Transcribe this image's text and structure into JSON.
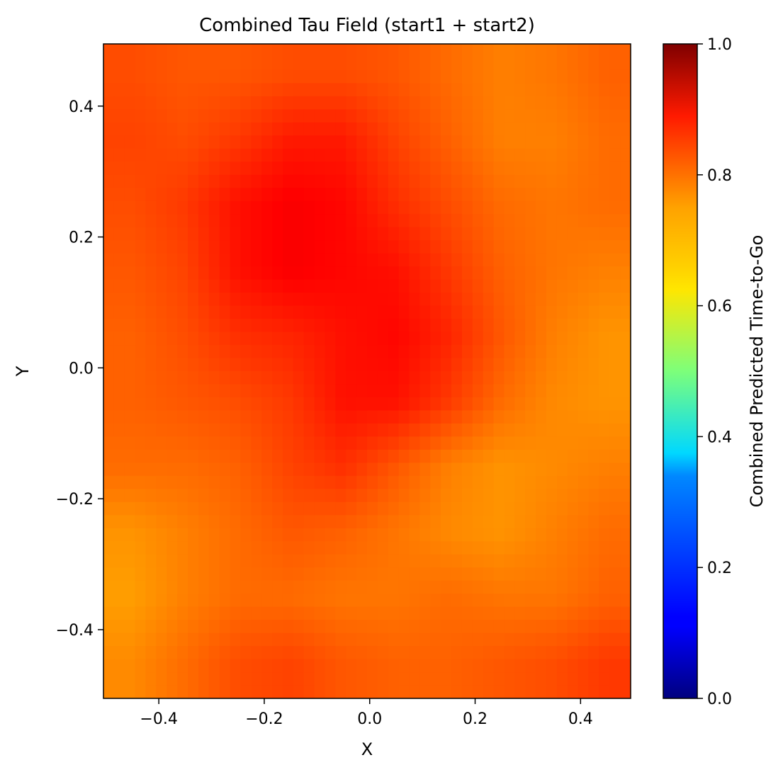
{
  "chart_data": {
    "type": "heatmap",
    "title": "Combined Tau Field (start1 + start2)",
    "xlabel": "X",
    "ylabel": "Y",
    "colorbar_label": "Combined Predicted Time-to-Go",
    "colormap": "jet",
    "xlim": [
      -0.505,
      0.495
    ],
    "ylim": [
      -0.505,
      0.495
    ],
    "clim": [
      0.0,
      1.0
    ],
    "x_ticks": [
      -0.4,
      -0.2,
      0.0,
      0.2,
      0.4
    ],
    "x_tick_labels": [
      "−0.4",
      "−0.2",
      "0.0",
      "0.2",
      "0.4"
    ],
    "y_ticks": [
      -0.4,
      -0.2,
      0.0,
      0.2,
      0.4
    ],
    "y_tick_labels": [
      "−0.4",
      "−0.2",
      "0.0",
      "0.2",
      "0.4"
    ],
    "colorbar_ticks": [
      0.0,
      0.2,
      0.4,
      0.6,
      0.8,
      1.0
    ],
    "colorbar_tick_labels": [
      "0.0",
      "0.2",
      "0.4",
      "0.6",
      "0.8",
      "1.0"
    ],
    "grid": false,
    "grid_x": [
      -0.45,
      -0.35,
      -0.25,
      -0.15,
      -0.05,
      0.05,
      0.15,
      0.25,
      0.35,
      0.45
    ],
    "grid_y": [
      0.45,
      0.35,
      0.25,
      0.15,
      0.05,
      -0.05,
      -0.15,
      -0.25,
      -0.35,
      -0.45
    ],
    "values": [
      [
        0.8,
        0.79,
        0.79,
        0.8,
        0.8,
        0.79,
        0.77,
        0.75,
        0.76,
        0.78
      ],
      [
        0.81,
        0.8,
        0.82,
        0.85,
        0.85,
        0.81,
        0.78,
        0.75,
        0.75,
        0.77
      ],
      [
        0.8,
        0.82,
        0.86,
        0.88,
        0.87,
        0.83,
        0.8,
        0.77,
        0.76,
        0.77
      ],
      [
        0.79,
        0.81,
        0.86,
        0.88,
        0.87,
        0.86,
        0.82,
        0.78,
        0.76,
        0.75
      ],
      [
        0.78,
        0.8,
        0.83,
        0.84,
        0.86,
        0.87,
        0.84,
        0.79,
        0.75,
        0.73
      ],
      [
        0.78,
        0.79,
        0.8,
        0.82,
        0.86,
        0.86,
        0.82,
        0.77,
        0.74,
        0.73
      ],
      [
        0.77,
        0.77,
        0.78,
        0.81,
        0.83,
        0.79,
        0.75,
        0.73,
        0.74,
        0.75
      ],
      [
        0.73,
        0.75,
        0.77,
        0.79,
        0.78,
        0.76,
        0.74,
        0.73,
        0.75,
        0.77
      ],
      [
        0.72,
        0.75,
        0.77,
        0.77,
        0.76,
        0.76,
        0.77,
        0.76,
        0.76,
        0.78
      ],
      [
        0.74,
        0.77,
        0.8,
        0.81,
        0.79,
        0.78,
        0.78,
        0.79,
        0.8,
        0.82
      ]
    ]
  }
}
